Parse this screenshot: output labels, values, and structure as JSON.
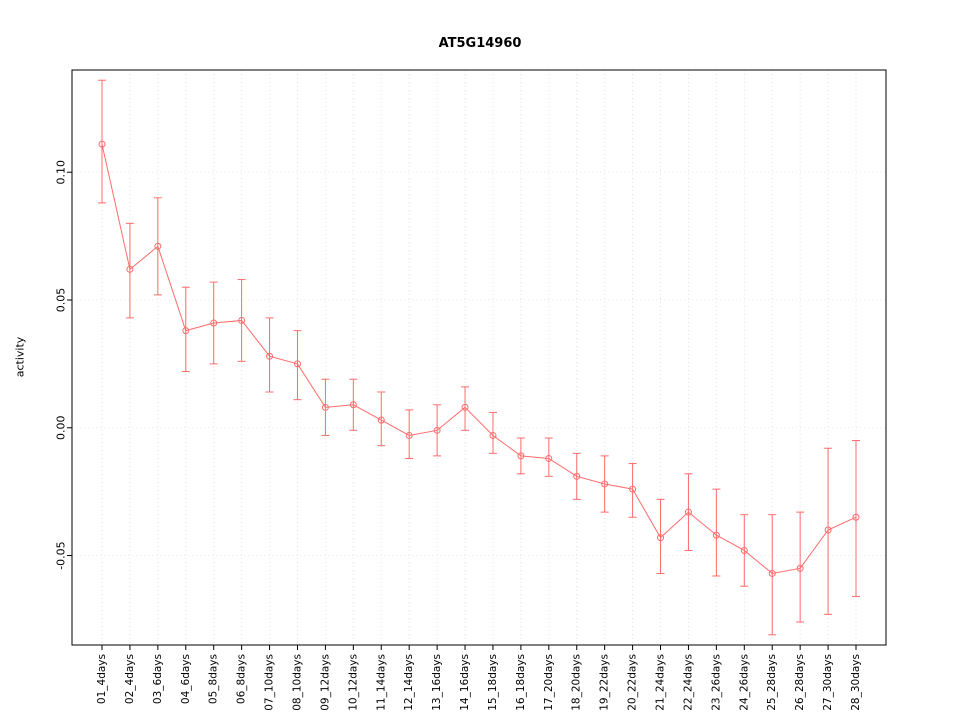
{
  "title": "AT5G14960",
  "chart_data": {
    "type": "line",
    "title": "AT5G14960",
    "xlabel": "",
    "ylabel": "activity",
    "categories": [
      "01_4days",
      "02_4days",
      "03_6days",
      "04_6days",
      "05_8days",
      "06_8days",
      "07_10days",
      "08_10days",
      "09_12days",
      "10_12days",
      "11_14days",
      "12_14days",
      "13_16days",
      "14_16days",
      "15_18days",
      "16_18days",
      "17_20days",
      "18_20days",
      "19_22days",
      "20_22days",
      "21_24days",
      "22_24days",
      "23_26days",
      "24_26days",
      "25_28days",
      "26_28days",
      "27_30days",
      "28_30days"
    ],
    "series": [
      {
        "name": "activity",
        "values": [
          0.111,
          0.062,
          0.071,
          0.038,
          0.041,
          0.042,
          0.028,
          0.025,
          0.008,
          0.009,
          0.003,
          -0.003,
          -0.001,
          0.008,
          -0.003,
          -0.011,
          -0.012,
          -0.019,
          -0.022,
          -0.024,
          -0.043,
          -0.033,
          -0.042,
          -0.048,
          -0.057,
          -0.055,
          -0.04,
          -0.035
        ],
        "upper": [
          0.136,
          0.08,
          0.09,
          0.055,
          0.057,
          0.058,
          0.043,
          0.038,
          0.019,
          0.019,
          0.014,
          0.007,
          0.009,
          0.016,
          0.006,
          -0.004,
          -0.004,
          -0.01,
          -0.011,
          -0.014,
          -0.028,
          -0.018,
          -0.024,
          -0.034,
          -0.034,
          -0.033,
          -0.008,
          -0.005
        ],
        "lower": [
          0.088,
          0.043,
          0.052,
          0.022,
          0.025,
          0.026,
          0.014,
          0.011,
          -0.003,
          -0.001,
          -0.007,
          -0.012,
          -0.011,
          -0.001,
          -0.01,
          -0.018,
          -0.019,
          -0.028,
          -0.033,
          -0.035,
          -0.057,
          -0.048,
          -0.058,
          -0.062,
          -0.081,
          -0.076,
          -0.073,
          -0.066
        ]
      }
    ],
    "ylim": [
      -0.085,
      0.14
    ],
    "ytick_values": [
      -0.05,
      0.0,
      0.05,
      0.1
    ],
    "ytick_labels": [
      "-0.05",
      "0.00",
      "0.05",
      "0.10"
    ],
    "grid": true,
    "legend": "none",
    "point_style": "open-circle",
    "error_bars": true
  },
  "colors": {
    "series": "#ff6b6b",
    "grid_vertical": "#e2e2e2",
    "grid_horizontal": "#ececec",
    "axis": "#000000",
    "background": "#ffffff"
  }
}
